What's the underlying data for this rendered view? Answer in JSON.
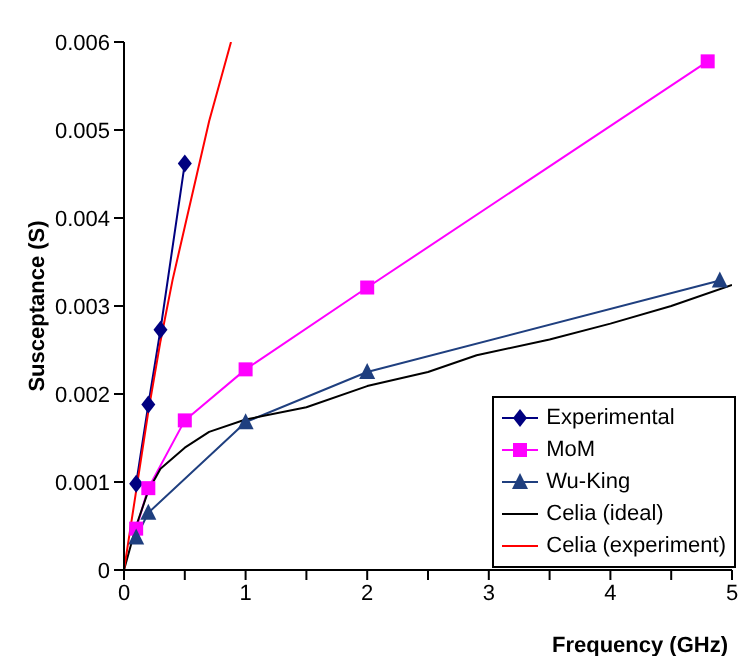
{
  "chart_data": {
    "type": "line",
    "xlabel": "Frequency (GHz)",
    "ylabel": "Susceptance (S)",
    "xlim": [
      0,
      5
    ],
    "xticks": [
      0,
      {
        "value": 0.5,
        "label": null
      },
      1,
      {
        "value": 1.5,
        "label": null
      },
      2,
      {
        "value": 2.5,
        "label": null
      },
      3,
      {
        "value": 3.5,
        "label": null
      },
      4,
      {
        "value": 4.5,
        "label": null
      },
      5
    ],
    "ylim": [
      0,
      0.006
    ],
    "yticks": [
      0,
      0.001,
      0.002,
      0.003,
      0.004,
      0.005,
      0.006
    ],
    "grid": false,
    "legend": "bottom right",
    "line_style": "solid",
    "series": [
      {
        "name": "Experimental",
        "color": "#000080",
        "marker": "diamond",
        "x": [
          0.1,
          0.2,
          0.3,
          0.5
        ],
        "values": [
          0.00098,
          0.00188,
          0.00273,
          0.00462
        ]
      },
      {
        "name": "MoM",
        "color": "#ff00ff",
        "marker": "square",
        "x": [
          0.1,
          0.2,
          0.5,
          1,
          2,
          4.8
        ],
        "values": [
          0.00047,
          0.00093,
          0.0017,
          0.00228,
          0.00321,
          0.00578
        ]
      },
      {
        "name": "Wu-King",
        "color": "#1f3f7f",
        "marker": "triangle",
        "x": [
          0.1,
          0.2,
          1,
          2,
          4.9
        ],
        "values": [
          0.00037,
          0.00065,
          0.00168,
          0.00225,
          0.00329
        ]
      },
      {
        "name": "Celia (ideal)",
        "color": "#000000",
        "marker": "none",
        "x": [
          0,
          0.1,
          0.2,
          0.3,
          0.5,
          0.7,
          1,
          1.5,
          2,
          2.5,
          2.9,
          3.5,
          4,
          4.5,
          5
        ],
        "values": [
          0,
          0.0005,
          0.0009,
          0.00115,
          0.00139,
          0.00157,
          0.00171,
          0.00185,
          0.00209,
          0.00225,
          0.00244,
          0.00262,
          0.0028,
          0.003,
          0.00324
        ]
      },
      {
        "name": "Celia (experiment)",
        "color": "#ff0000",
        "marker": "none",
        "x": [
          0,
          0.1,
          0.2,
          0.3,
          0.4,
          0.5,
          0.6,
          0.7,
          0.8,
          0.88
        ],
        "values": [
          0,
          0.0009,
          0.0018,
          0.0026,
          0.0033,
          0.0039,
          0.0045,
          0.0051,
          0.0056,
          0.006
        ]
      }
    ]
  }
}
